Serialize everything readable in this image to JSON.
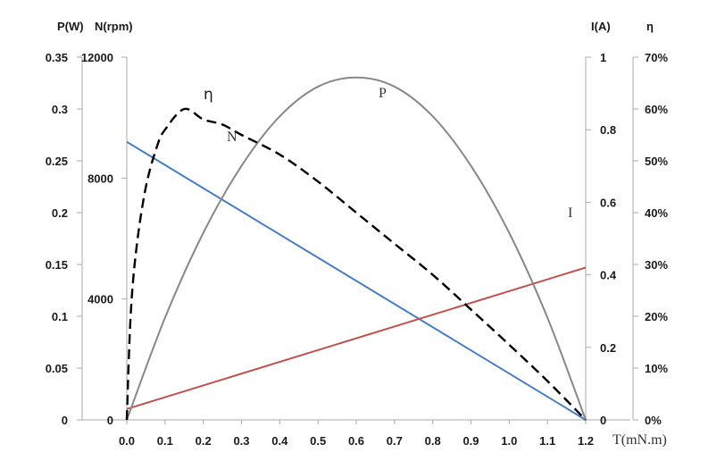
{
  "chart_data": {
    "type": "line",
    "x_axis": {
      "label": "T(mN.m)",
      "ticks": [
        "0.0",
        "0.1",
        "0.2",
        "0.3",
        "0.4",
        "0.5",
        "0.6",
        "0.7",
        "0.8",
        "0.9",
        "1.0",
        "1.1",
        "1.2"
      ],
      "range": [
        0,
        1.2
      ]
    },
    "y_axes": {
      "power": {
        "label": "P(W)",
        "ticks": [
          "0",
          "0.05",
          "0.1",
          "0.15",
          "0.2",
          "0.25",
          "0.3",
          "0.35"
        ],
        "range": [
          0,
          0.35
        ]
      },
      "speed": {
        "label": "N(rpm)",
        "ticks": [
          "0",
          "4000",
          "8000",
          "12000"
        ],
        "range": [
          0,
          12000
        ]
      },
      "current": {
        "label": "I(A)",
        "ticks": [
          "0",
          "0.2",
          "0.4",
          "0.6",
          "0.8",
          "1"
        ],
        "range": [
          0,
          1
        ]
      },
      "efficiency": {
        "label": "η",
        "ticks": [
          "0%",
          "10%",
          "20%",
          "30%",
          "40%",
          "50%",
          "60%",
          "70%"
        ],
        "range": [
          0,
          0.7
        ]
      }
    },
    "series": [
      {
        "name": "N",
        "axis": "speed",
        "color": "#4a7ec0",
        "style": "solid",
        "x": [
          0,
          1.2
        ],
        "y": [
          9200,
          0
        ]
      },
      {
        "name": "I",
        "axis": "current",
        "color": "#c0504d",
        "style": "solid",
        "x": [
          0,
          1.2
        ],
        "y": [
          0.03,
          0.42
        ]
      },
      {
        "name": "P",
        "axis": "power",
        "color": "#888888",
        "style": "solid",
        "x": [
          0,
          0.1,
          0.2,
          0.3,
          0.4,
          0.5,
          0.6,
          0.7,
          0.8,
          0.9,
          1.0,
          1.1,
          1.2
        ],
        "y": [
          0,
          0.0986,
          0.1804,
          0.2451,
          0.2929,
          0.3216,
          0.3304,
          0.3216,
          0.2929,
          0.2451,
          0.1804,
          0.0986,
          0
        ]
      },
      {
        "name": "η",
        "axis": "efficiency",
        "color": "#000000",
        "style": "dashed",
        "x": [
          0,
          0.01,
          0.025,
          0.05,
          0.08,
          0.1,
          0.15,
          0.2,
          0.25,
          0.3,
          0.4,
          0.5,
          0.6,
          0.7,
          0.8,
          0.9,
          1.0,
          1.1,
          1.2
        ],
        "y": [
          0,
          0.2,
          0.33,
          0.45,
          0.53,
          0.56,
          0.6,
          0.58,
          0.57,
          0.55,
          0.512,
          0.46,
          0.4,
          0.34,
          0.28,
          0.213,
          0.145,
          0.075,
          0
        ]
      }
    ],
    "annotations": [
      {
        "text": "η",
        "series": "η"
      },
      {
        "text": "N",
        "series": "N"
      },
      {
        "text": "P",
        "series": "P"
      },
      {
        "text": "I",
        "series": "I"
      }
    ]
  }
}
